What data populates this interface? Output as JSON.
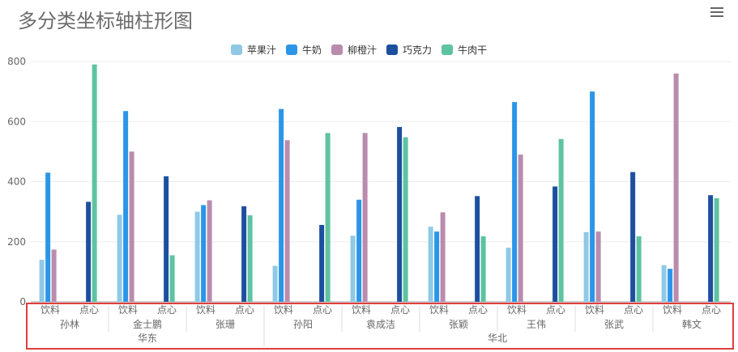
{
  "title": "多分类坐标轴柱形图",
  "menu_icon": "hamburger-menu-icon",
  "chart_data": {
    "type": "bar",
    "ylim": [
      0,
      800
    ],
    "yticks": [
      0,
      200,
      400,
      600,
      800
    ],
    "grid": true,
    "legend_placement": "top-center",
    "regions": [
      {
        "name": "华东",
        "people": [
          "孙林",
          "金士鹏",
          "张珊"
        ]
      },
      {
        "name": "华北",
        "people": [
          "孙阳",
          "袁成洁",
          "张颖",
          "王伟",
          "张武",
          "韩文"
        ]
      }
    ],
    "people": [
      "孙林",
      "金士鹏",
      "张珊",
      "孙阳",
      "袁成洁",
      "张颖",
      "王伟",
      "张武",
      "韩文"
    ],
    "subcategories": [
      "饮料",
      "点心"
    ],
    "series": [
      {
        "name": "苹果汁",
        "color": "#8fc9e6",
        "subcategory": "饮料",
        "values": [
          140,
          290,
          300,
          120,
          220,
          250,
          180,
          232,
          122
        ]
      },
      {
        "name": "牛奶",
        "color": "#2b96e8",
        "subcategory": "饮料",
        "values": [
          430,
          635,
          322,
          642,
          340,
          234,
          665,
          700,
          110
        ]
      },
      {
        "name": "柳橙汁",
        "color": "#b98cae",
        "subcategory": "饮料",
        "values": [
          174,
          500,
          338,
          538,
          562,
          298,
          490,
          234,
          760
        ]
      },
      {
        "name": "巧克力",
        "color": "#1d4f9f",
        "subcategory": "点心",
        "values": [
          333,
          418,
          318,
          256,
          582,
          352,
          384,
          432,
          355
        ]
      },
      {
        "name": "牛肉干",
        "color": "#5ec3a1",
        "subcategory": "点心",
        "values": [
          790,
          155,
          288,
          562,
          548,
          218,
          542,
          218,
          345
        ]
      }
    ]
  }
}
